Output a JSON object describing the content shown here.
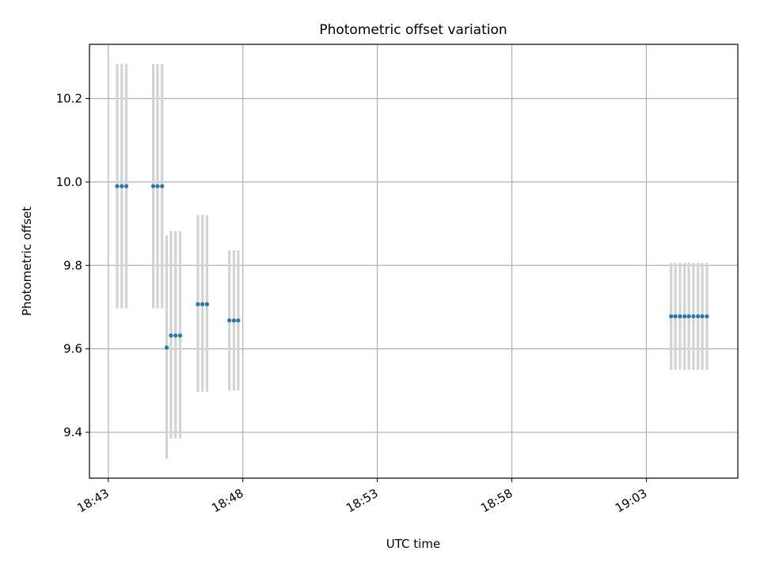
{
  "chart_data": {
    "type": "scatter",
    "title": "Photometric offset variation",
    "xlabel": "UTC time",
    "ylabel": "Photometric offset",
    "x_ticks": [
      "18:43",
      "18:48",
      "18:53",
      "18:58",
      "19:03"
    ],
    "x_tick_minutes": [
      0,
      5,
      10,
      15,
      20
    ],
    "xlim_minutes": [
      -0.7,
      23.4
    ],
    "y_ticks": [
      "9.4",
      "9.6",
      "9.8",
      "10.0",
      "10.2"
    ],
    "ylim": [
      9.29,
      10.33
    ],
    "grid": true,
    "colors": {
      "points": "#1f77b4",
      "error_bars": "#d3d3d3"
    },
    "series": [
      {
        "x_minutes": [
          0.33,
          0.5,
          0.67,
          1.67,
          1.83,
          2.0,
          2.17,
          2.33,
          2.5,
          2.67,
          3.33,
          3.5,
          3.67,
          4.5,
          4.67,
          4.83,
          20.92,
          21.08,
          21.25,
          21.42,
          21.58,
          21.75,
          21.92,
          22.08,
          22.25
        ],
        "y": [
          9.99,
          9.99,
          9.99,
          9.99,
          9.99,
          9.99,
          9.603,
          9.632,
          9.632,
          9.632,
          9.707,
          9.707,
          9.707,
          9.668,
          9.668,
          9.668,
          9.678,
          9.678,
          9.678,
          9.678,
          9.678,
          9.678,
          9.678,
          9.678,
          9.678
        ],
        "y_low": [
          9.697,
          9.697,
          9.697,
          9.697,
          9.697,
          9.697,
          9.337,
          9.385,
          9.385,
          9.385,
          9.497,
          9.497,
          9.497,
          9.5,
          9.5,
          9.5,
          9.55,
          9.55,
          9.55,
          9.55,
          9.55,
          9.55,
          9.55,
          9.55,
          9.55
        ],
        "y_high": [
          10.283,
          10.283,
          10.283,
          10.283,
          10.283,
          10.283,
          9.872,
          9.882,
          9.882,
          9.882,
          9.921,
          9.921,
          9.921,
          9.836,
          9.836,
          9.836,
          9.806,
          9.806,
          9.806,
          9.806,
          9.806,
          9.806,
          9.806,
          9.806,
          9.806
        ]
      }
    ]
  }
}
